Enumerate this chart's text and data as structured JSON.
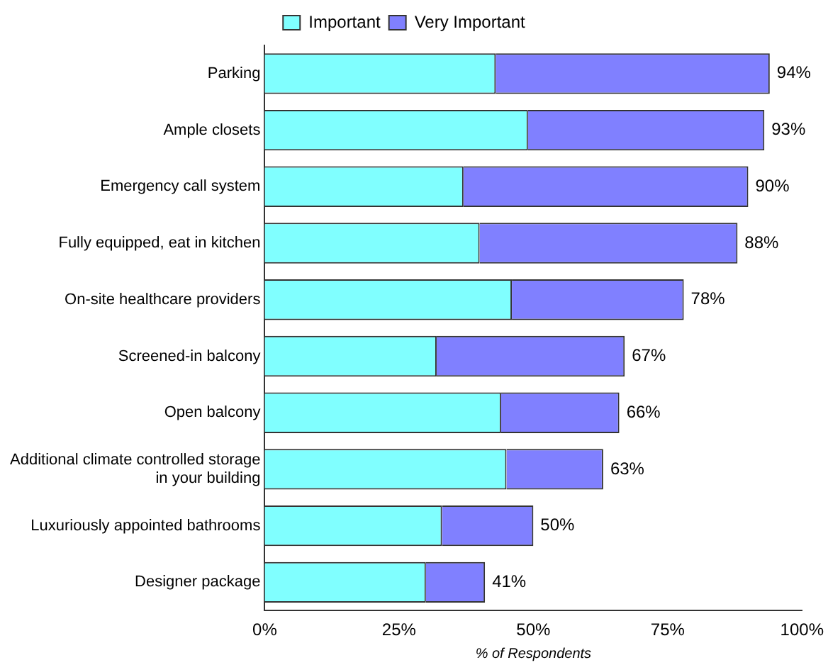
{
  "chart_data": {
    "type": "bar",
    "orientation": "horizontal",
    "stacked": true,
    "xlabel": "% of Respondents",
    "categories": [
      "Parking",
      "Ample closets",
      "Emergency call system",
      "Fully equipped, eat in kitchen",
      "On-site healthcare providers",
      "Screened-in balcony",
      "Open balcony",
      "Additional climate controlled storage\nin your building",
      "Luxuriously appointed bathrooms",
      "Designer package"
    ],
    "series": [
      {
        "name": "Important",
        "color": "#80ffff",
        "values": [
          43,
          49,
          37,
          40,
          46,
          32,
          44,
          45,
          33,
          30
        ]
      },
      {
        "name": "Very Important",
        "color": "#8080ff",
        "values": [
          51,
          44,
          53,
          48,
          32,
          35,
          22,
          18,
          17,
          11
        ]
      }
    ],
    "totals": [
      "94%",
      "93%",
      "90%",
      "88%",
      "78%",
      "67%",
      "66%",
      "63%",
      "50%",
      "41%"
    ],
    "xlim": [
      0,
      100
    ],
    "xticks": [
      {
        "value": 0,
        "label": "0%"
      },
      {
        "value": 25,
        "label": "25%"
      },
      {
        "value": 50,
        "label": "50%"
      },
      {
        "value": 75,
        "label": "75%"
      },
      {
        "value": 100,
        "label": "100%"
      }
    ],
    "legend": "top",
    "grid": false
  }
}
